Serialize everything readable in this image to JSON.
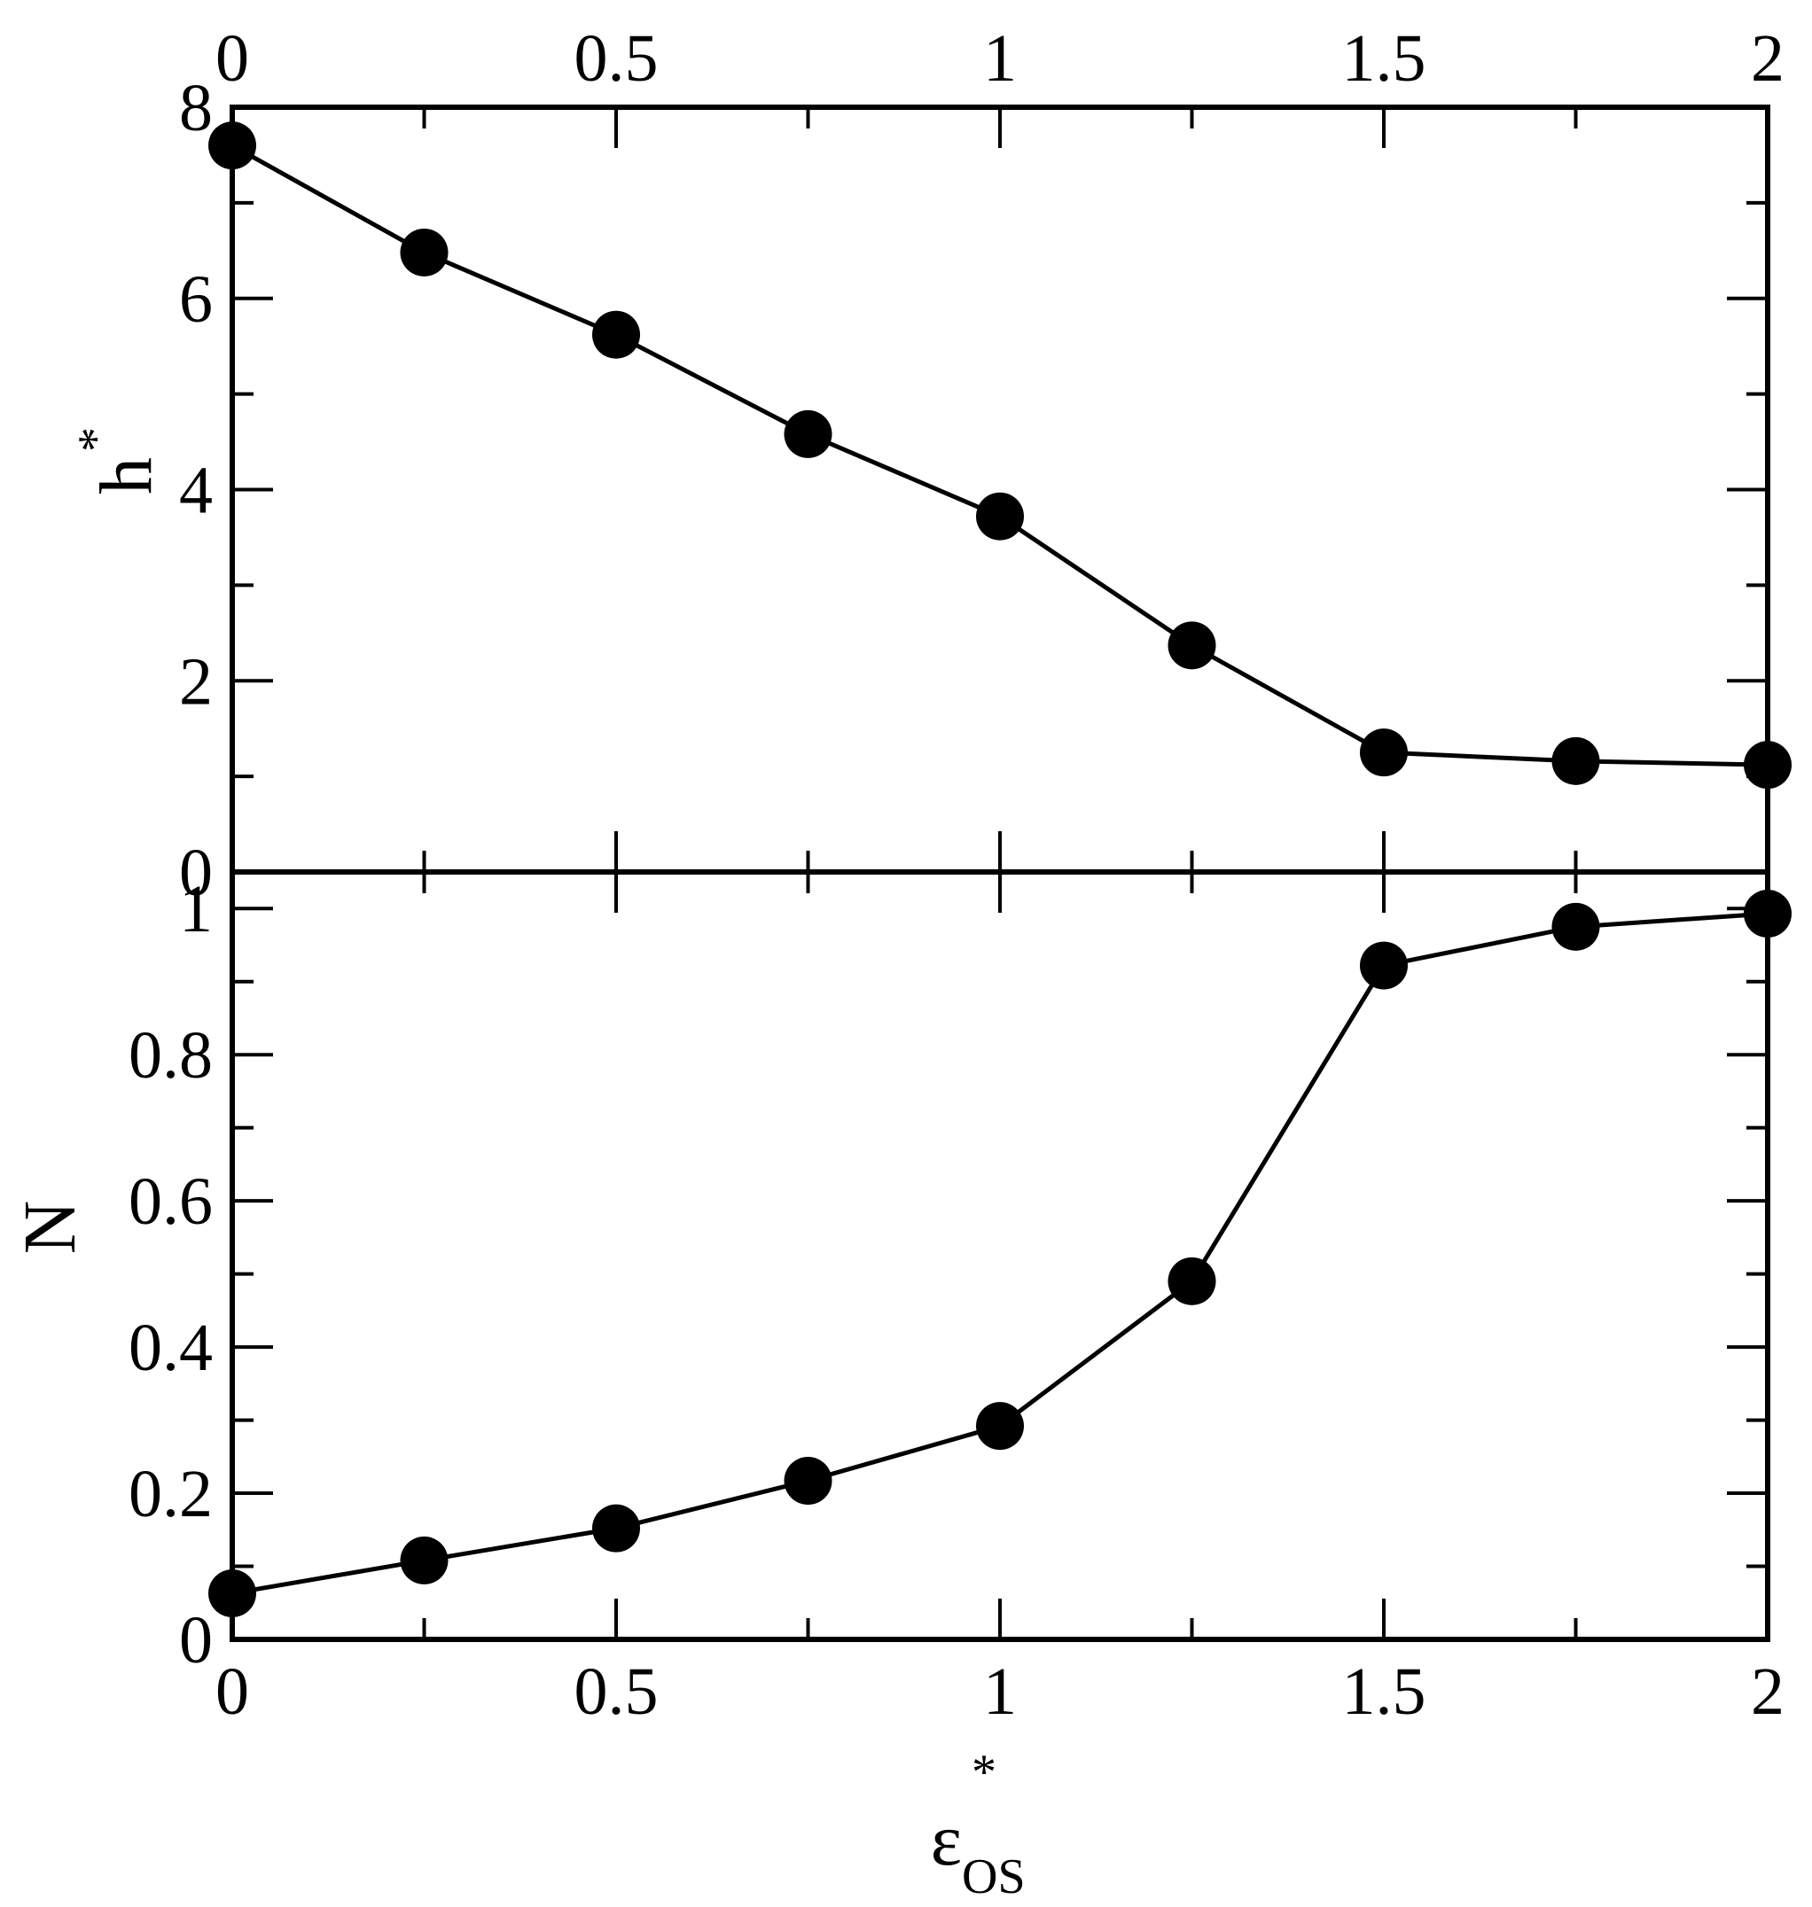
{
  "chart_data": [
    {
      "type": "line",
      "panel": "top",
      "x": [
        0,
        0.25,
        0.5,
        0.75,
        1.0,
        1.25,
        1.5,
        1.75,
        2.0
      ],
      "series": [
        {
          "values": [
            7.6,
            6.48,
            5.62,
            4.58,
            3.72,
            2.37,
            1.25,
            1.16,
            1.12
          ]
        }
      ],
      "xlim": [
        0,
        2
      ],
      "ylim": [
        0,
        8
      ],
      "xticks": [
        "0",
        "0.5",
        "1",
        "1.5",
        "2"
      ],
      "yticks": [
        "0",
        "2",
        "4",
        "6",
        "8"
      ],
      "ylabel": "h",
      "ylabel_superscript": "*",
      "x_tick_labels_position": "top",
      "grid": false,
      "marker": "filled-circle",
      "color": "#000000"
    },
    {
      "type": "line",
      "panel": "bottom",
      "x": [
        0,
        0.25,
        0.5,
        0.75,
        1.0,
        1.25,
        1.5,
        1.75,
        2.0
      ],
      "series": [
        {
          "values": [
            0.063,
            0.108,
            0.152,
            0.217,
            0.292,
            0.49,
            0.922,
            0.975,
            0.993
          ]
        }
      ],
      "xlim": [
        0,
        2
      ],
      "ylim": [
        0,
        1.05
      ],
      "xticks": [
        "0",
        "0.5",
        "1",
        "1.5",
        "2"
      ],
      "yticks": [
        "0",
        "0.2",
        "0.4",
        "0.6",
        "0.8",
        "1"
      ],
      "ylabel": "N",
      "xlabel": "ε",
      "xlabel_superscript": "*",
      "xlabel_subscript": "OS",
      "grid": false,
      "marker": "filled-circle",
      "color": "#000000"
    }
  ]
}
